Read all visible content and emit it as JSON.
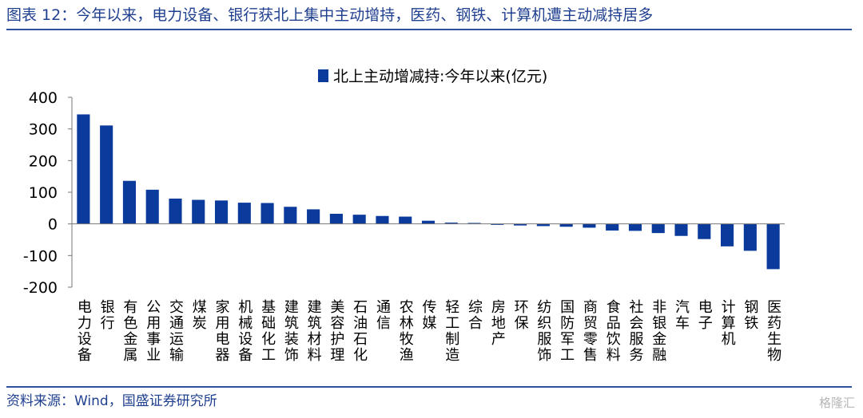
{
  "header": {
    "title": "图表 12：今年以来，电力设备、银行获北上集中主动增持，医药、钢铁、计算机遭主动减持居多"
  },
  "footer": {
    "source": "资料来源：Wind，国盛证券研究所",
    "watermark": "格隆汇"
  },
  "colors": {
    "bar": "#0a3a9b",
    "accent": "#2c4f9e",
    "axis": "#777777"
  },
  "chart_data": {
    "type": "bar",
    "title": "",
    "xlabel": "",
    "ylabel": "",
    "ylim": [
      -200,
      400
    ],
    "yticks": [
      "400",
      "300",
      "200",
      "100",
      "0",
      "-100",
      "-200"
    ],
    "legend_position": "top-center",
    "grid": false,
    "categories": [
      "电力设备",
      "银行",
      "有色金属",
      "公用事业",
      "交通运输",
      "煤炭",
      "家用电器",
      "机械设备",
      "基础化工",
      "建筑装饰",
      "建筑材料",
      "美容护理",
      "石油石化",
      "通信",
      "农林牧渔",
      "传媒",
      "轻工制造",
      "综合",
      "房地产",
      "环保",
      "纺织服饰",
      "国防军工",
      "商贸零售",
      "食品饮料",
      "社会服务",
      "非银金融",
      "汽车",
      "电子",
      "计算机",
      "钢铁",
      "医药生物"
    ],
    "series": [
      {
        "name": "北上主动增减持:今年以来(亿元)",
        "values": [
          346,
          311,
          136,
          108,
          80,
          76,
          74,
          67,
          66,
          54,
          46,
          32,
          29,
          25,
          23,
          10,
          4,
          3,
          -3,
          -5,
          -7,
          -9,
          -12,
          -21,
          -22,
          -29,
          -38,
          -48,
          -71,
          -85,
          -143
        ]
      }
    ]
  }
}
